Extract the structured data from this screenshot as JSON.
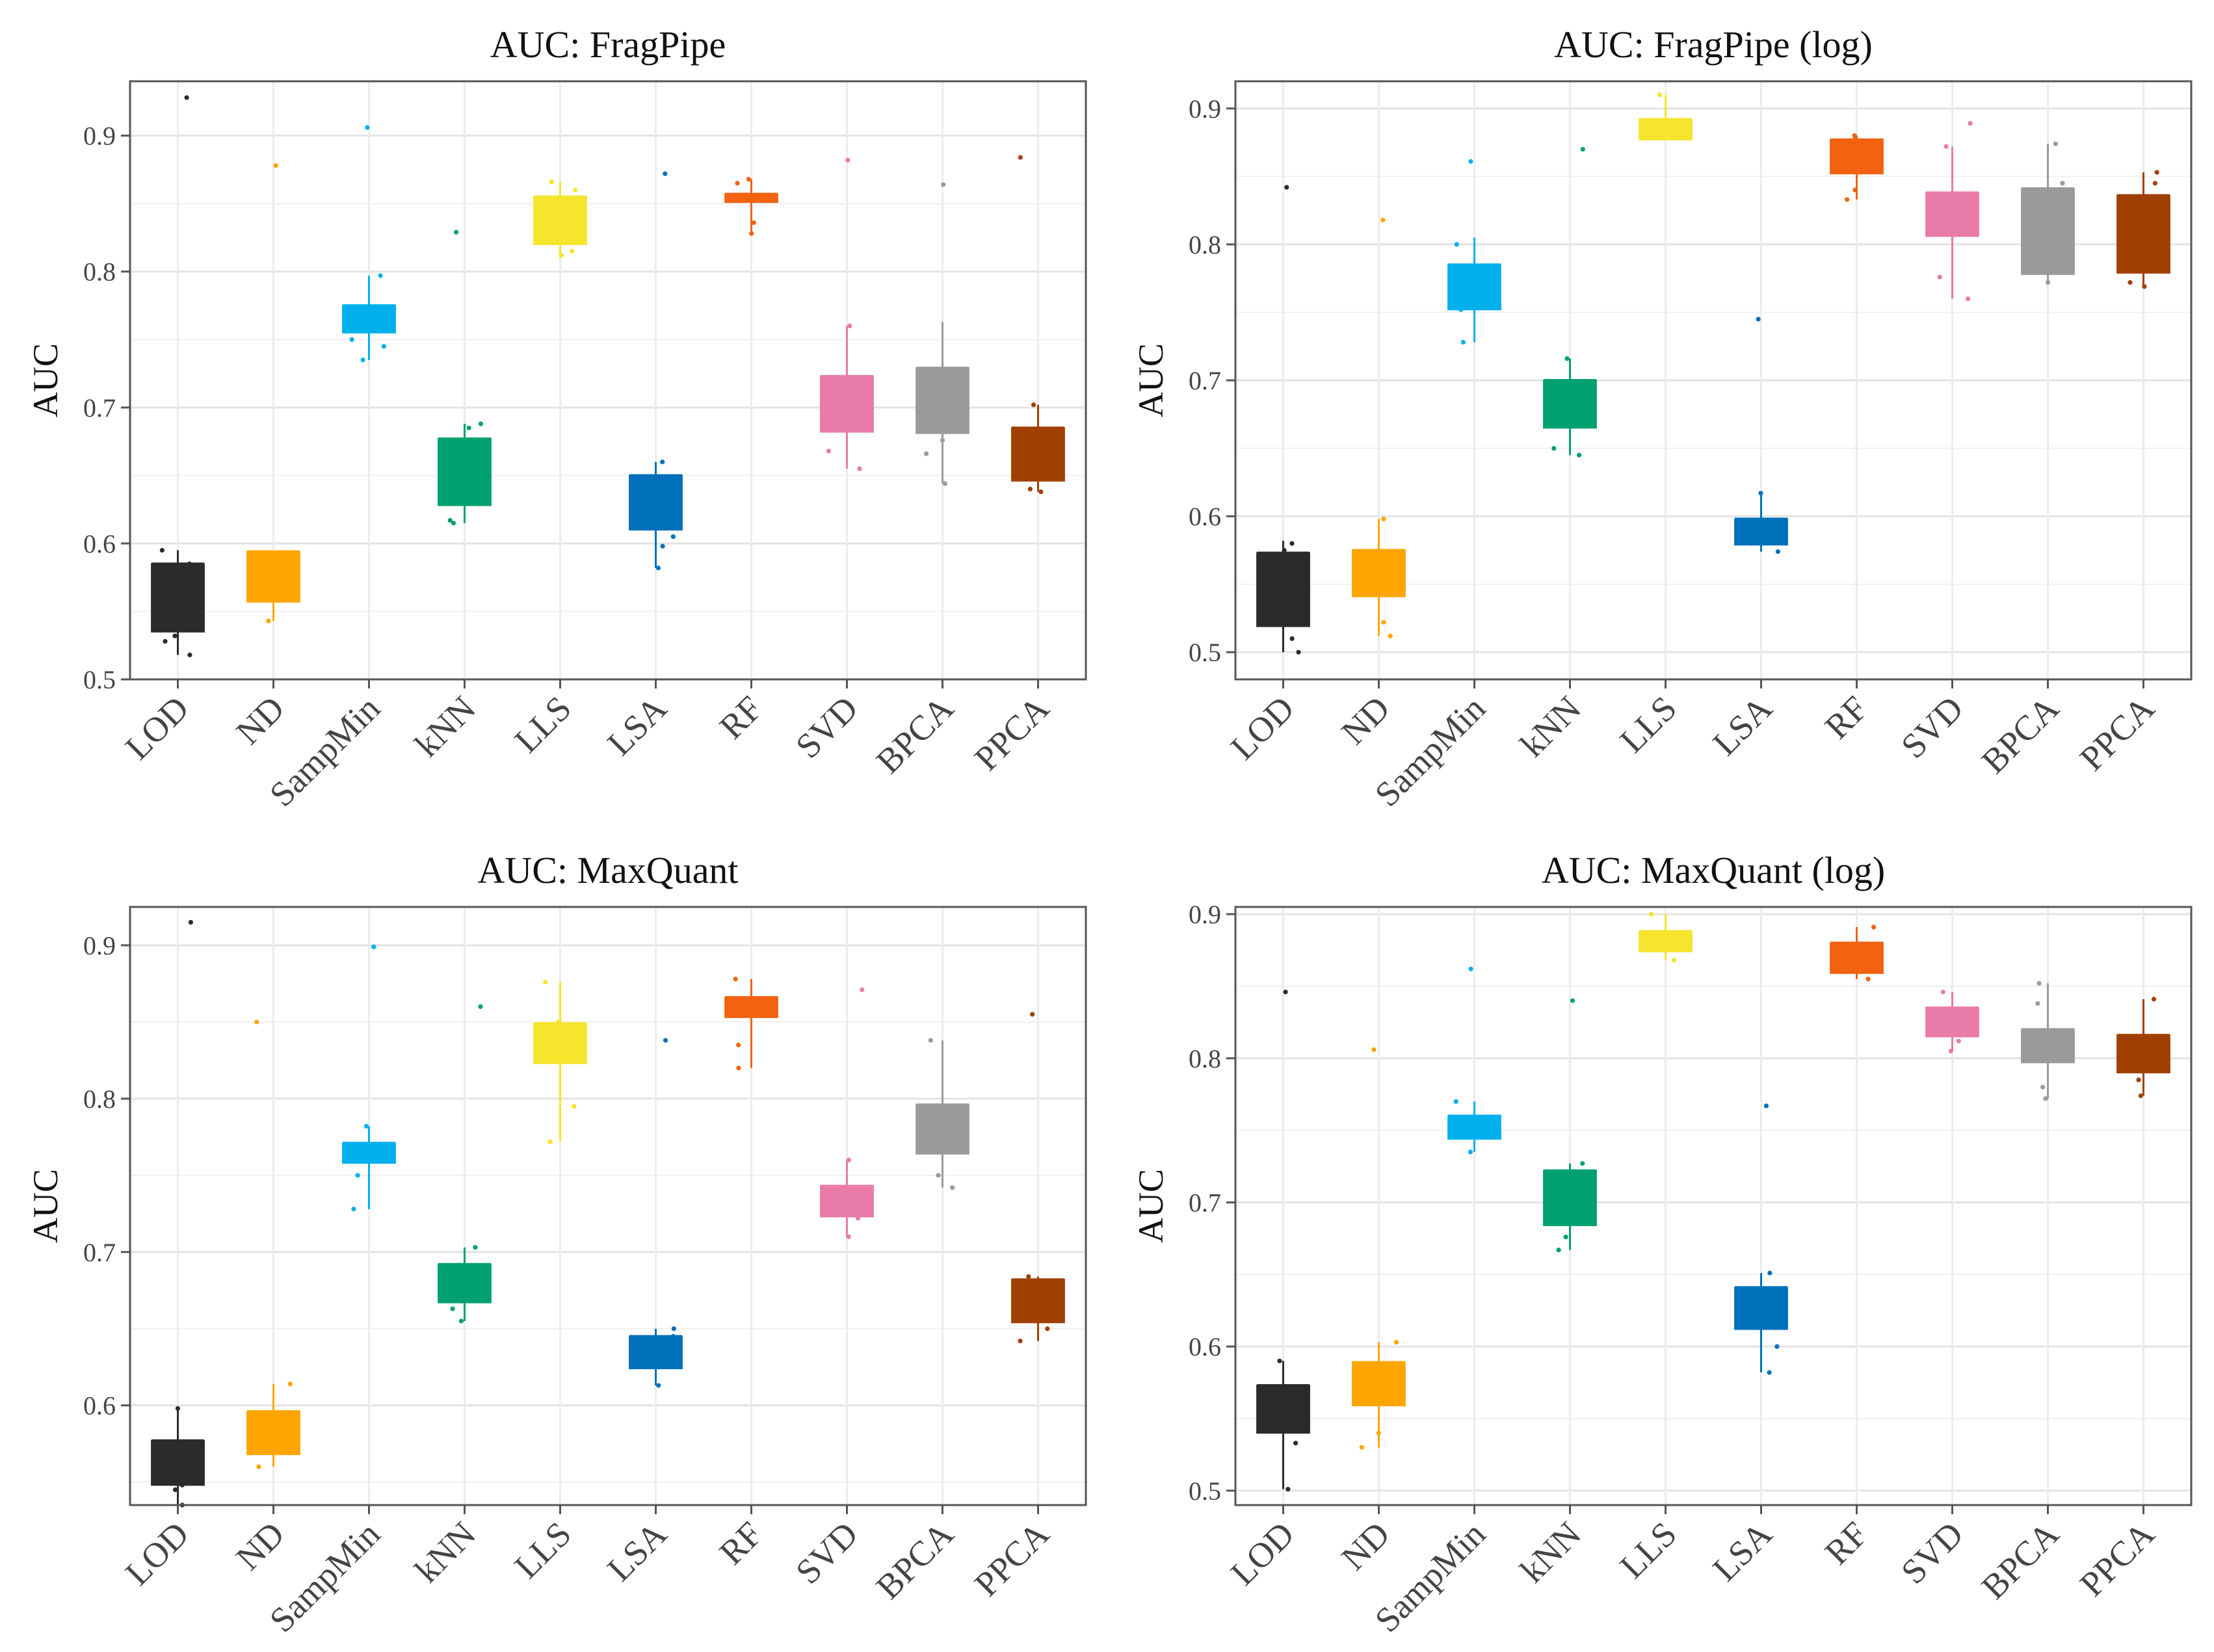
{
  "figure": {
    "panels": [
      {
        "id": "fragpipe",
        "title": "AUC: FragPipe"
      },
      {
        "id": "fragpipe-log",
        "title": "AUC: FragPipe (log)"
      },
      {
        "id": "maxquant",
        "title": "AUC: MaxQuant"
      },
      {
        "id": "maxquant-log",
        "title": "AUC: MaxQuant (log)"
      }
    ]
  },
  "chart_data": [
    {
      "type": "box",
      "title": "AUC: FragPipe",
      "xlabel": "",
      "ylabel": "AUC",
      "ylim": [
        0.5,
        0.94
      ],
      "yticks": [
        0.5,
        0.6,
        0.7,
        0.8,
        0.9
      ],
      "grid": true,
      "categories": [
        "LOD",
        "ND",
        "SampMin",
        "kNN",
        "LLS",
        "LSA",
        "RF",
        "SVD",
        "BPCA",
        "PPCA"
      ],
      "colors": [
        "#2b2b2b",
        "#ffa500",
        "#00b0ed",
        "#00a070",
        "#f5e52d",
        "#0070bb",
        "#f26210",
        "#e87ba8",
        "#9a9a9a",
        "#a04000"
      ],
      "boxes": [
        {
          "q1": 0.535,
          "median": 0.585,
          "q3": 0.585,
          "lower": 0.518,
          "upper": 0.595,
          "points": [
            0.928,
            0.595,
            0.532,
            0.518,
            0.528,
            0.585
          ]
        },
        {
          "q1": 0.557,
          "median": 0.594,
          "q3": 0.594,
          "lower": 0.543,
          "upper": 0.594,
          "points": [
            0.878,
            0.543,
            0.558,
            0.592
          ]
        },
        {
          "q1": 0.755,
          "median": 0.775,
          "q3": 0.775,
          "lower": 0.735,
          "upper": 0.797,
          "points": [
            0.906,
            0.735,
            0.745,
            0.75,
            0.797
          ]
        },
        {
          "q1": 0.628,
          "median": 0.677,
          "q3": 0.677,
          "lower": 0.615,
          "upper": 0.688,
          "points": [
            0.829,
            0.688,
            0.685,
            0.617,
            0.615
          ]
        },
        {
          "q1": 0.82,
          "median": 0.855,
          "q3": 0.855,
          "lower": 0.81,
          "upper": 0.866,
          "points": [
            0.815,
            0.812,
            0.86,
            0.866
          ]
        },
        {
          "q1": 0.61,
          "median": 0.65,
          "q3": 0.65,
          "lower": 0.582,
          "upper": 0.66,
          "points": [
            0.872,
            0.582,
            0.598,
            0.605,
            0.66
          ]
        },
        {
          "q1": 0.851,
          "median": 0.857,
          "q3": 0.857,
          "lower": 0.828,
          "upper": 0.868,
          "points": [
            0.828,
            0.836,
            0.865,
            0.868
          ]
        },
        {
          "q1": 0.682,
          "median": 0.723,
          "q3": 0.723,
          "lower": 0.655,
          "upper": 0.76,
          "points": [
            0.882,
            0.76,
            0.655,
            0.668
          ]
        },
        {
          "q1": 0.681,
          "median": 0.729,
          "q3": 0.729,
          "lower": 0.644,
          "upper": 0.763,
          "points": [
            0.864,
            0.644,
            0.666,
            0.676
          ]
        },
        {
          "q1": 0.646,
          "median": 0.685,
          "q3": 0.685,
          "lower": 0.638,
          "upper": 0.702,
          "points": [
            0.884,
            0.702,
            0.64,
            0.638
          ]
        }
      ]
    },
    {
      "type": "box",
      "title": "AUC: FragPipe (log)",
      "xlabel": "",
      "ylabel": "AUC",
      "ylim": [
        0.48,
        0.92
      ],
      "yticks": [
        0.5,
        0.6,
        0.7,
        0.8,
        0.9
      ],
      "grid": true,
      "categories": [
        "LOD",
        "ND",
        "SampMin",
        "kNN",
        "LLS",
        "LSA",
        "RF",
        "SVD",
        "BPCA",
        "PPCA"
      ],
      "colors": [
        "#2b2b2b",
        "#ffa500",
        "#00b0ed",
        "#00a070",
        "#f5e52d",
        "#0070bb",
        "#f26210",
        "#e87ba8",
        "#9a9a9a",
        "#a04000"
      ],
      "boxes": [
        {
          "q1": 0.519,
          "median": 0.573,
          "q3": 0.573,
          "lower": 0.5,
          "upper": 0.582,
          "points": [
            0.842,
            0.5,
            0.51,
            0.58,
            0.575
          ]
        },
        {
          "q1": 0.541,
          "median": 0.575,
          "q3": 0.575,
          "lower": 0.512,
          "upper": 0.598,
          "points": [
            0.818,
            0.512,
            0.522,
            0.598
          ]
        },
        {
          "q1": 0.752,
          "median": 0.785,
          "q3": 0.785,
          "lower": 0.728,
          "upper": 0.805,
          "points": [
            0.861,
            0.728,
            0.752,
            0.8
          ]
        },
        {
          "q1": 0.665,
          "median": 0.7,
          "q3": 0.7,
          "lower": 0.645,
          "upper": 0.716,
          "points": [
            0.87,
            0.645,
            0.65,
            0.716
          ]
        },
        {
          "q1": 0.877,
          "median": 0.892,
          "q3": 0.892,
          "lower": 0.877,
          "upper": 0.91,
          "points": [
            0.91,
            0.88,
            0.888
          ]
        },
        {
          "q1": 0.579,
          "median": 0.598,
          "q3": 0.598,
          "lower": 0.574,
          "upper": 0.617,
          "points": [
            0.745,
            0.574,
            0.617,
            0.58
          ]
        },
        {
          "q1": 0.852,
          "median": 0.877,
          "q3": 0.877,
          "lower": 0.833,
          "upper": 0.88,
          "points": [
            0.833,
            0.84,
            0.88,
            0.878
          ]
        },
        {
          "q1": 0.806,
          "median": 0.838,
          "q3": 0.838,
          "lower": 0.76,
          "upper": 0.872,
          "points": [
            0.889,
            0.76,
            0.776,
            0.872
          ]
        },
        {
          "q1": 0.778,
          "median": 0.841,
          "q3": 0.841,
          "lower": 0.772,
          "upper": 0.874,
          "points": [
            0.874,
            0.772,
            0.78,
            0.845
          ]
        },
        {
          "q1": 0.779,
          "median": 0.836,
          "q3": 0.836,
          "lower": 0.769,
          "upper": 0.853,
          "points": [
            0.853,
            0.769,
            0.772,
            0.845
          ]
        }
      ]
    },
    {
      "type": "box",
      "title": "AUC: MaxQuant",
      "xlabel": "",
      "ylabel": "AUC",
      "ylim": [
        0.535,
        0.925
      ],
      "yticks": [
        0.6,
        0.7,
        0.8,
        0.9
      ],
      "grid": true,
      "categories": [
        "LOD",
        "ND",
        "SampMin",
        "kNN",
        "LLS",
        "LSA",
        "RF",
        "SVD",
        "BPCA",
        "PPCA"
      ],
      "colors": [
        "#2b2b2b",
        "#ffa500",
        "#00b0ed",
        "#00a070",
        "#f5e52d",
        "#0070bb",
        "#f26210",
        "#e87ba8",
        "#9a9a9a",
        "#a04000"
      ],
      "boxes": [
        {
          "q1": 0.548,
          "median": 0.577,
          "q3": 0.577,
          "lower": 0.535,
          "upper": 0.598,
          "points": [
            0.915,
            0.598,
            0.535,
            0.545,
            0.548
          ]
        },
        {
          "q1": 0.568,
          "median": 0.596,
          "q3": 0.596,
          "lower": 0.56,
          "upper": 0.614,
          "points": [
            0.85,
            0.56,
            0.57,
            0.614
          ]
        },
        {
          "q1": 0.758,
          "median": 0.771,
          "q3": 0.771,
          "lower": 0.728,
          "upper": 0.782,
          "points": [
            0.899,
            0.728,
            0.75,
            0.782
          ]
        },
        {
          "q1": 0.667,
          "median": 0.692,
          "q3": 0.692,
          "lower": 0.655,
          "upper": 0.703,
          "points": [
            0.86,
            0.655,
            0.663,
            0.703
          ]
        },
        {
          "q1": 0.823,
          "median": 0.849,
          "q3": 0.849,
          "lower": 0.772,
          "upper": 0.876,
          "points": [
            0.772,
            0.795,
            0.876,
            0.85
          ]
        },
        {
          "q1": 0.624,
          "median": 0.645,
          "q3": 0.645,
          "lower": 0.613,
          "upper": 0.65,
          "points": [
            0.838,
            0.613,
            0.65,
            0.645
          ]
        },
        {
          "q1": 0.853,
          "median": 0.866,
          "q3": 0.866,
          "lower": 0.82,
          "upper": 0.878,
          "points": [
            0.82,
            0.835,
            0.878
          ]
        },
        {
          "q1": 0.723,
          "median": 0.743,
          "q3": 0.743,
          "lower": 0.71,
          "upper": 0.76,
          "points": [
            0.871,
            0.71,
            0.722,
            0.76
          ]
        },
        {
          "q1": 0.764,
          "median": 0.796,
          "q3": 0.796,
          "lower": 0.742,
          "upper": 0.838,
          "points": [
            0.838,
            0.742,
            0.75
          ]
        },
        {
          "q1": 0.654,
          "median": 0.682,
          "q3": 0.682,
          "lower": 0.642,
          "upper": 0.684,
          "points": [
            0.855,
            0.642,
            0.65,
            0.684
          ]
        }
      ]
    },
    {
      "type": "box",
      "title": "AUC: MaxQuant (log)",
      "xlabel": "",
      "ylabel": "AUC",
      "ylim": [
        0.49,
        0.905
      ],
      "yticks": [
        0.5,
        0.6,
        0.7,
        0.8,
        0.9
      ],
      "grid": true,
      "categories": [
        "LOD",
        "ND",
        "SampMin",
        "kNN",
        "LLS",
        "LSA",
        "RF",
        "SVD",
        "BPCA",
        "PPCA"
      ],
      "colors": [
        "#2b2b2b",
        "#ffa500",
        "#00b0ed",
        "#00a070",
        "#f5e52d",
        "#0070bb",
        "#f26210",
        "#e87ba8",
        "#9a9a9a",
        "#a04000"
      ],
      "boxes": [
        {
          "q1": 0.54,
          "median": 0.573,
          "q3": 0.573,
          "lower": 0.501,
          "upper": 0.59,
          "points": [
            0.846,
            0.501,
            0.533,
            0.59
          ]
        },
        {
          "q1": 0.559,
          "median": 0.589,
          "q3": 0.589,
          "lower": 0.53,
          "upper": 0.603,
          "points": [
            0.806,
            0.53,
            0.54,
            0.603
          ]
        },
        {
          "q1": 0.744,
          "median": 0.76,
          "q3": 0.76,
          "lower": 0.735,
          "upper": 0.77,
          "points": [
            0.862,
            0.735,
            0.745,
            0.77
          ]
        },
        {
          "q1": 0.684,
          "median": 0.722,
          "q3": 0.722,
          "lower": 0.667,
          "upper": 0.727,
          "points": [
            0.84,
            0.667,
            0.676,
            0.727
          ]
        },
        {
          "q1": 0.874,
          "median": 0.888,
          "q3": 0.888,
          "lower": 0.868,
          "upper": 0.9,
          "points": [
            0.9,
            0.868,
            0.878
          ]
        },
        {
          "q1": 0.612,
          "median": 0.641,
          "q3": 0.641,
          "lower": 0.582,
          "upper": 0.651,
          "points": [
            0.767,
            0.582,
            0.6,
            0.651
          ]
        },
        {
          "q1": 0.859,
          "median": 0.88,
          "q3": 0.88,
          "lower": 0.855,
          "upper": 0.891,
          "points": [
            0.891,
            0.855,
            0.86
          ]
        },
        {
          "q1": 0.815,
          "median": 0.835,
          "q3": 0.835,
          "lower": 0.805,
          "upper": 0.846,
          "points": [
            0.846,
            0.805,
            0.812
          ]
        },
        {
          "q1": 0.797,
          "median": 0.82,
          "q3": 0.82,
          "lower": 0.772,
          "upper": 0.852,
          "points": [
            0.852,
            0.772,
            0.78,
            0.838
          ]
        },
        {
          "q1": 0.79,
          "median": 0.816,
          "q3": 0.816,
          "lower": 0.774,
          "upper": 0.841,
          "points": [
            0.841,
            0.774,
            0.785
          ]
        }
      ]
    }
  ]
}
